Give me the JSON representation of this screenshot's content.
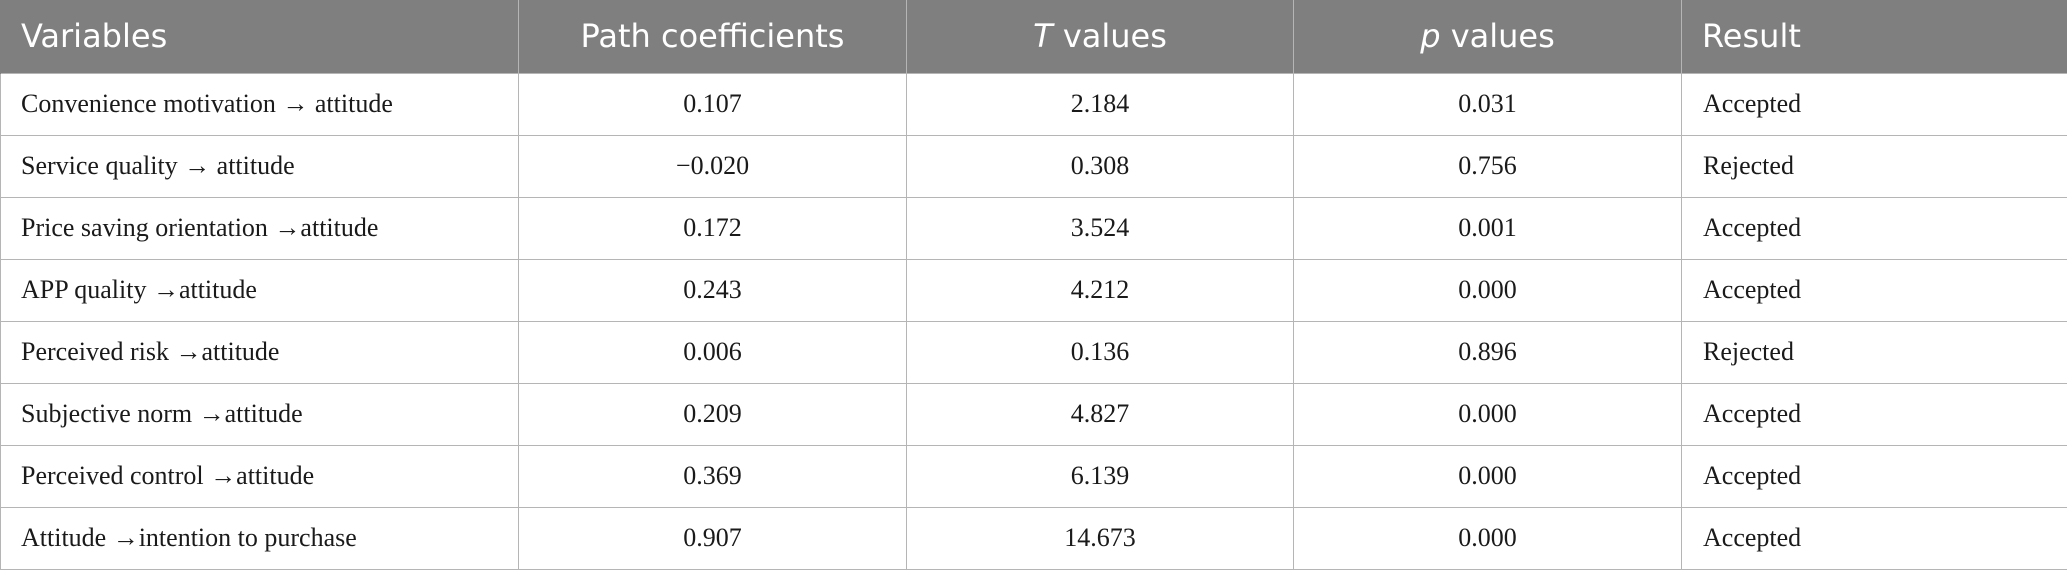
{
  "table": {
    "headers": {
      "variables": "Variables",
      "path_coefficients": "Path coefficients",
      "t_symbol": "T",
      "t_suffix": " values",
      "p_symbol": "p",
      "p_suffix": " values",
      "result": "Result"
    },
    "rows": [
      {
        "variable": "Convenience motivation → attitude",
        "path": "0.107",
        "t": "2.184",
        "p": "0.031",
        "result": "Accepted"
      },
      {
        "variable": "Service quality → attitude",
        "path": "−0.020",
        "t": "0.308",
        "p": "0.756",
        "result": "Rejected"
      },
      {
        "variable": "Price saving orientation →attitude",
        "path": "0.172",
        "t": "3.524",
        "p": "0.001",
        "result": "Accepted"
      },
      {
        "variable": "APP quality →attitude",
        "path": "0.243",
        "t": "4.212",
        "p": "0.000",
        "result": "Accepted"
      },
      {
        "variable": "Perceived risk →attitude",
        "path": "0.006",
        "t": "0.136",
        "p": "0.896",
        "result": "Rejected"
      },
      {
        "variable": "Subjective norm →attitude",
        "path": "0.209",
        "t": "4.827",
        "p": "0.000",
        "result": "Accepted"
      },
      {
        "variable": "Perceived control →attitude",
        "path": "0.369",
        "t": "6.139",
        "p": "0.000",
        "result": "Accepted"
      },
      {
        "variable": "Attitude →intention to purchase",
        "path": "0.907",
        "t": "14.673",
        "p": "0.000",
        "result": "Accepted"
      }
    ]
  }
}
